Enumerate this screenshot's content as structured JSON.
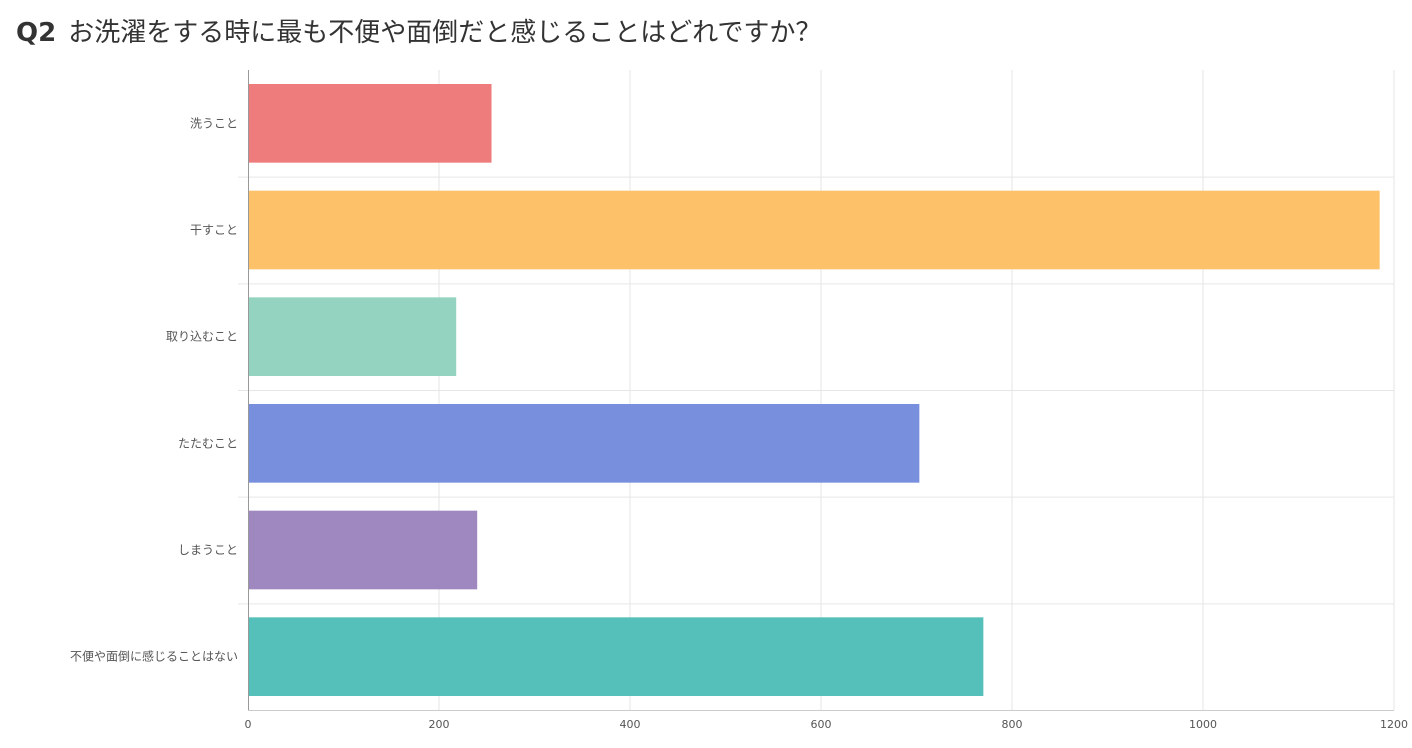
{
  "question": {
    "number": "Q2",
    "text": "お洗濯をする時に最も不便や面倒だと感じることはどれですか？"
  },
  "chart_data": {
    "type": "bar",
    "orientation": "horizontal",
    "categories": [
      "洗うこと",
      "干すこと",
      "取り込むこと",
      "たたむこと",
      "しまうこと",
      "不便や面倒に感じることはない"
    ],
    "values": [
      255,
      1185,
      218,
      703,
      240,
      770
    ],
    "colors": [
      "#ee7c7c",
      "#fdc169",
      "#94d3bf",
      "#788fde",
      "#9f88c0",
      "#55bfb9"
    ],
    "xlim": [
      0,
      1200
    ],
    "xticks": [
      0,
      200,
      400,
      600,
      800,
      1000,
      1200
    ],
    "grid": true
  }
}
